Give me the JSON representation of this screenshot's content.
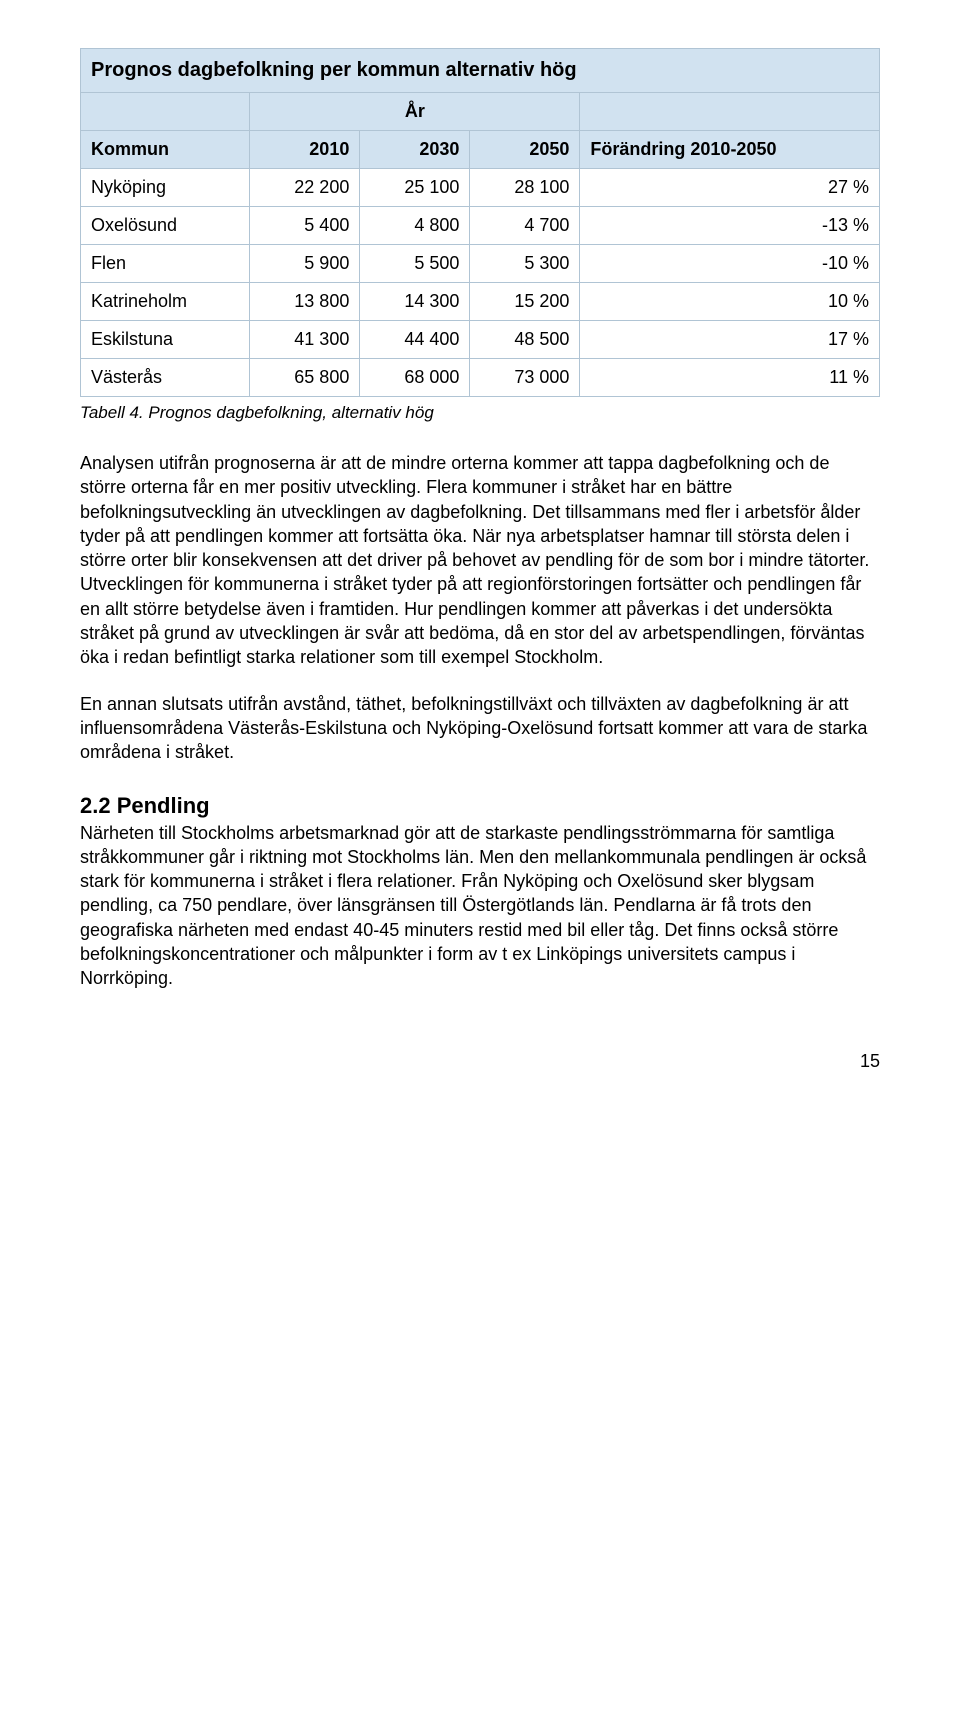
{
  "table": {
    "title": "Prognos dagbefolkning per kommun alternativ hög",
    "year_label": "År",
    "columns": [
      "Kommun",
      "2010",
      "2030",
      "2050",
      "Förändring 2010-2050"
    ],
    "rows": [
      {
        "name": "Nyköping",
        "y2010": "22 200",
        "y2030": "25 100",
        "y2050": "28 100",
        "change": "27 %"
      },
      {
        "name": "Oxelösund",
        "y2010": "5 400",
        "y2030": "4 800",
        "y2050": "4 700",
        "change": "-13 %"
      },
      {
        "name": "Flen",
        "y2010": "5 900",
        "y2030": "5 500",
        "y2050": "5 300",
        "change": "-10 %"
      },
      {
        "name": "Katrineholm",
        "y2010": "13 800",
        "y2030": "14 300",
        "y2050": "15 200",
        "change": "10 %"
      },
      {
        "name": "Eskilstuna",
        "y2010": "41 300",
        "y2030": "44 400",
        "y2050": "48 500",
        "change": "17 %"
      },
      {
        "name": "Västerås",
        "y2010": "65 800",
        "y2030": "68 000",
        "y2050": "73 000",
        "change": "11 %"
      }
    ],
    "caption": "Tabell 4. Prognos dagbefolkning, alternativ hög",
    "colors": {
      "header_bg": "#d1e2f0",
      "border": "#b0c4d4",
      "text": "#000000",
      "page_bg": "#ffffff"
    }
  },
  "paragraphs": {
    "p1": "Analysen utifrån prognoserna är att de mindre orterna kommer att tappa dagbefolkning och de större orterna får en mer positiv utveckling. Flera kommuner i stråket har en bättre befolkningsutveckling än utvecklingen av dagbefolkning. Det tillsammans med fler i arbetsför ålder tyder på att pendlingen kommer att fortsätta öka. När nya arbetsplatser hamnar till största delen i större orter blir konsekvensen att det driver på behovet av pendling för de som bor i mindre tätorter. Utvecklingen för kommunerna i stråket tyder på att regionförstoringen fortsätter och pendlingen får en allt större betydelse även i framtiden. Hur pendlingen kommer att påverkas i det undersökta stråket på grund av utvecklingen är svår att bedöma, då en stor del av arbetspendlingen, förväntas öka i redan befintligt starka relationer som till exempel Stockholm.",
    "p2": "En annan slutsats utifrån avstånd, täthet, befolkningstillväxt och tillväxten av dagbefolkning är att influensområdena Västerås-Eskilstuna och Nyköping-Oxelösund fortsatt kommer att vara de starka områdena i stråket.",
    "p3": "Närheten till Stockholms arbetsmarknad gör att de starkaste pendlingsströmmarna för samtliga stråkkommuner går i riktning mot Stockholms län. Men den mellankommunala pendlingen är också stark för kommunerna i stråket i flera relationer. Från Nyköping och Oxelösund sker blygsam pendling, ca 750 pendlare, över länsgränsen till Östergötlands län. Pendlarna är få trots den geografiska närheten med endast 40-45 minuters restid med bil eller tåg. Det finns också större befolkningskoncentrationer och målpunkter i form av t ex Linköpings universitets campus i Norrköping."
  },
  "section_heading": "2.2 Pendling",
  "page_number": "15"
}
